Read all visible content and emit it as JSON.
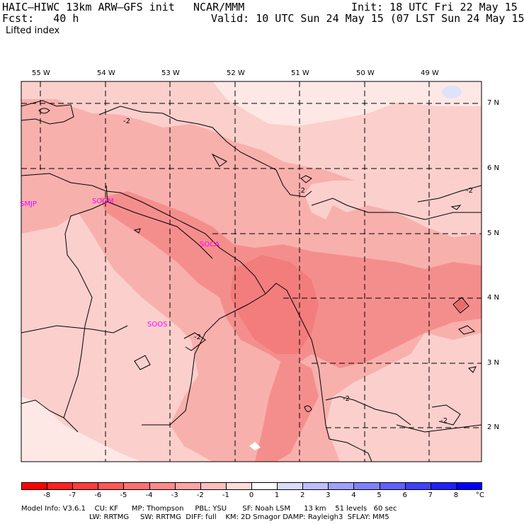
{
  "header": {
    "model": "HAIC–HIWC 13km ARW–GFS init",
    "center": "NCAR/MMM",
    "init": "Init: 18 UTC Fri 22 May 15",
    "fcst": "Fcst:   40 h",
    "valid": "Valid: 10 UTC Sun 24 May 15 (07 LST Sun 24 May 15)",
    "field": "Lifted index"
  },
  "axes": {
    "lon_labels": [
      "55 W",
      "54 W",
      "53 W",
      "52 W",
      "51 W",
      "50 W",
      "49 W"
    ],
    "lat_labels": [
      "7 N",
      "6 N",
      "5 N",
      "4 N",
      "3 N",
      "2 N"
    ]
  },
  "stations": [
    {
      "id": "SMJP",
      "color": "#ff00ff"
    },
    {
      "id": "SOGM",
      "color": "#ff00ff"
    },
    {
      "id": "SOCA",
      "color": "#ff00ff"
    },
    {
      "id": "SOOS",
      "color": "#ff00ff"
    }
  ],
  "contour_labels": [
    "-2",
    "-2",
    "-2",
    "-2",
    "-2",
    "-2"
  ],
  "colorbar": {
    "ticks": [
      "-8",
      "-7",
      "-6",
      "-5",
      "-4",
      "-3",
      "-2",
      "-1",
      "0",
      "1",
      "2",
      "3",
      "4",
      "5",
      "6",
      "7",
      "8"
    ],
    "unit": "°C",
    "colors": [
      "#ff0000",
      "#ff2020",
      "#ff3c3c",
      "#ff5656",
      "#ff7070",
      "#ff8a8a",
      "#ffa4a4",
      "#ffbebe",
      "#ffdcdc",
      "#ffffff",
      "#dcdcff",
      "#bebeff",
      "#a0a0ff",
      "#8080ff",
      "#6060ff",
      "#4040ff",
      "#2020ff",
      "#0000ff"
    ]
  },
  "footer": {
    "line1": "Model Info: V3.6.1    CU: KF      MP: Thompson     PBL: YSU       SF: Noah LSM      13 km    51 levels   60 sec",
    "line2": "LW: RRTMG     SW: RRTMG  DIFF: full    KM: 2D Smagor DAMP: Rayleigh3  SFLAY: MM5"
  },
  "fill_colors": {
    "lightest": "#fde8e6",
    "light": "#fbcfcc",
    "mid": "#f8b0ad",
    "dark": "#f48e8c",
    "darker": "#f07070",
    "blue_blob": "#dfe3fa"
  }
}
